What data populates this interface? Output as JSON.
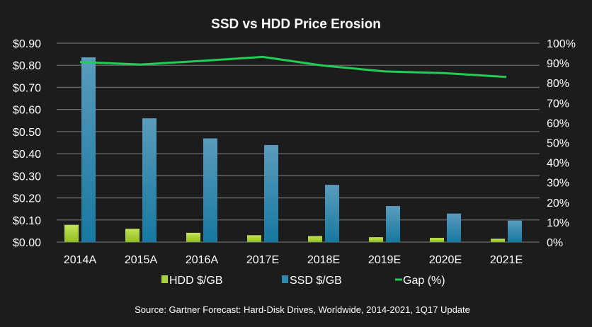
{
  "chart_data": {
    "type": "bar",
    "title": "SSD vs HDD Price Erosion",
    "categories": [
      "2014A",
      "2015A",
      "2016A",
      "2017E",
      "2018E",
      "2019E",
      "2020E",
      "2021E"
    ],
    "series": [
      {
        "name": "HDD $/GB",
        "kind": "bar",
        "axis": "left",
        "color": "#a8d13a",
        "values": [
          0.078,
          0.06,
          0.042,
          0.031,
          0.027,
          0.022,
          0.019,
          0.015
        ]
      },
      {
        "name": "SSD $/GB",
        "kind": "bar",
        "axis": "left",
        "color": "#2e8bb0",
        "values": [
          0.836,
          0.56,
          0.469,
          0.439,
          0.259,
          0.163,
          0.129,
          0.097
        ]
      },
      {
        "name": "Gap (%)",
        "kind": "line",
        "axis": "right",
        "color": "#22cc55",
        "values": [
          90.5,
          89.3,
          91.1,
          93.1,
          88.7,
          85.8,
          84.9,
          83.0
        ]
      }
    ],
    "left_axis": {
      "ylim": [
        0,
        0.9
      ],
      "ticks": [
        "$0.00",
        "$0.10",
        "$0.20",
        "$0.30",
        "$0.40",
        "$0.50",
        "$0.60",
        "$0.70",
        "$0.80",
        "$0.90"
      ]
    },
    "right_axis": {
      "ylim": [
        0,
        100
      ],
      "ticks": [
        "0%",
        "10%",
        "20%",
        "30%",
        "40%",
        "50%",
        "60%",
        "70%",
        "80%",
        "90%",
        "100%"
      ]
    },
    "grid": true,
    "legend_placement": "bottom",
    "source": "Source: Gartner Forecast: Hard-Disk Drives, Worldwide, 2014-2021, 1Q17 Update"
  }
}
